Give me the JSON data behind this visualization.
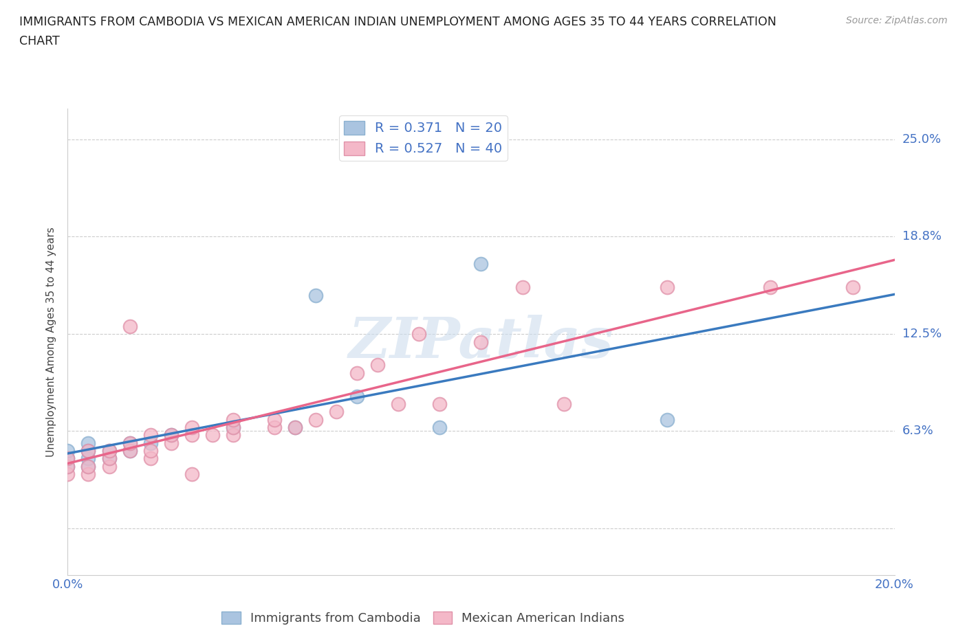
{
  "title_line1": "IMMIGRANTS FROM CAMBODIA VS MEXICAN AMERICAN INDIAN UNEMPLOYMENT AMONG AGES 35 TO 44 YEARS CORRELATION",
  "title_line2": "CHART",
  "source": "Source: ZipAtlas.com",
  "ylabel": "Unemployment Among Ages 35 to 44 years",
  "xlim": [
    0.0,
    0.2
  ],
  "ylim": [
    -0.03,
    0.27
  ],
  "ytick_vals": [
    0.0,
    0.063,
    0.125,
    0.188,
    0.25
  ],
  "ytick_labels": [
    "",
    "6.3%",
    "12.5%",
    "18.8%",
    "25.0%"
  ],
  "xtick_vals": [
    0.0,
    0.05,
    0.1,
    0.15,
    0.2
  ],
  "xtick_labels": [
    "0.0%",
    "",
    "",
    "",
    "20.0%"
  ],
  "r_cambodia": 0.371,
  "n_cambodia": 20,
  "r_mexican": 0.527,
  "n_mexican": 40,
  "blue_scatter_color": "#aac4e0",
  "pink_scatter_color": "#f4b8c8",
  "blue_line_color": "#3a7abf",
  "pink_line_color": "#e8658a",
  "blue_legend_color": "#aac4e0",
  "pink_legend_color": "#f4b8c8",
  "tick_color": "#4472c4",
  "watermark_text": "ZIPatlas",
  "legend_label_cambodia": "Immigrants from Cambodia",
  "legend_label_mexican": "Mexican American Indians",
  "cambodia_points": [
    [
      0.0,
      0.04
    ],
    [
      0.0,
      0.045
    ],
    [
      0.0,
      0.05
    ],
    [
      0.005,
      0.04
    ],
    [
      0.005,
      0.045
    ],
    [
      0.005,
      0.05
    ],
    [
      0.005,
      0.055
    ],
    [
      0.01,
      0.045
    ],
    [
      0.01,
      0.05
    ],
    [
      0.015,
      0.05
    ],
    [
      0.015,
      0.055
    ],
    [
      0.02,
      0.055
    ],
    [
      0.025,
      0.06
    ],
    [
      0.04,
      0.065
    ],
    [
      0.055,
      0.065
    ],
    [
      0.06,
      0.15
    ],
    [
      0.07,
      0.085
    ],
    [
      0.09,
      0.065
    ],
    [
      0.1,
      0.17
    ],
    [
      0.145,
      0.07
    ]
  ],
  "mexican_points": [
    [
      0.0,
      0.035
    ],
    [
      0.0,
      0.04
    ],
    [
      0.0,
      0.045
    ],
    [
      0.005,
      0.035
    ],
    [
      0.005,
      0.04
    ],
    [
      0.005,
      0.05
    ],
    [
      0.01,
      0.04
    ],
    [
      0.01,
      0.045
    ],
    [
      0.01,
      0.05
    ],
    [
      0.015,
      0.05
    ],
    [
      0.015,
      0.055
    ],
    [
      0.015,
      0.13
    ],
    [
      0.02,
      0.045
    ],
    [
      0.02,
      0.05
    ],
    [
      0.02,
      0.06
    ],
    [
      0.025,
      0.055
    ],
    [
      0.025,
      0.06
    ],
    [
      0.03,
      0.035
    ],
    [
      0.03,
      0.06
    ],
    [
      0.03,
      0.065
    ],
    [
      0.035,
      0.06
    ],
    [
      0.04,
      0.06
    ],
    [
      0.04,
      0.065
    ],
    [
      0.04,
      0.07
    ],
    [
      0.05,
      0.065
    ],
    [
      0.05,
      0.07
    ],
    [
      0.055,
      0.065
    ],
    [
      0.06,
      0.07
    ],
    [
      0.065,
      0.075
    ],
    [
      0.07,
      0.1
    ],
    [
      0.075,
      0.105
    ],
    [
      0.08,
      0.08
    ],
    [
      0.085,
      0.125
    ],
    [
      0.09,
      0.08
    ],
    [
      0.1,
      0.12
    ],
    [
      0.11,
      0.155
    ],
    [
      0.12,
      0.08
    ],
    [
      0.145,
      0.155
    ],
    [
      0.17,
      0.155
    ],
    [
      0.19,
      0.155
    ]
  ]
}
